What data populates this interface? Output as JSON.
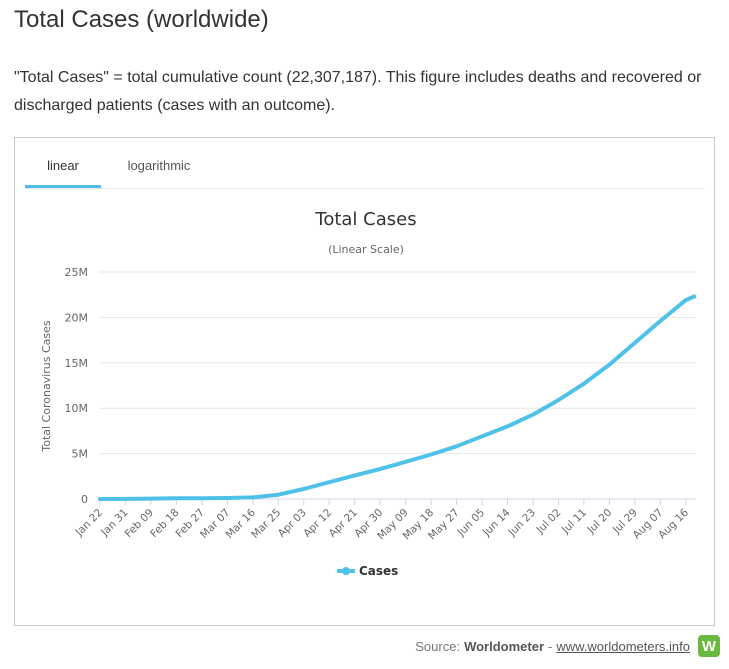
{
  "page": {
    "title": "Total Cases (worldwide)",
    "description": "\"Total Cases\" = total cumulative count (22,307,187). This figure includes deaths and recovered or discharged patients (cases with an outcome)."
  },
  "tabs": [
    {
      "label": "linear",
      "active": true
    },
    {
      "label": "logarithmic",
      "active": false
    }
  ],
  "colors": {
    "accent": "#4fc1e9",
    "series": "#4fc1e9"
  },
  "source": {
    "prefix": "Source: ",
    "name": "Worldometer",
    "separator": " - ",
    "link": "www.worldometers.info",
    "logo_letter": "W"
  },
  "chart_data": {
    "type": "line",
    "title": "Total Cases",
    "subtitle": "(Linear Scale)",
    "ylabel": "Total Coronavirus Cases",
    "xlabel": "",
    "ylim": [
      0,
      25000000
    ],
    "yticks": [
      0,
      5000000,
      10000000,
      15000000,
      20000000,
      25000000
    ],
    "ytick_labels": [
      "0",
      "5M",
      "10M",
      "15M",
      "20M",
      "25M"
    ],
    "xtick_labels": [
      "Jan 22",
      "Jan 31",
      "Feb 09",
      "Feb 18",
      "Feb 27",
      "Mar 07",
      "Mar 16",
      "Mar 25",
      "Apr 03",
      "Apr 12",
      "Apr 21",
      "Apr 30",
      "May 09",
      "May 18",
      "May 27",
      "Jun 05",
      "Jun 14",
      "Jun 23",
      "Jul 02",
      "Jul 11",
      "Jul 20",
      "Jul 29",
      "Aug 07",
      "Aug 16"
    ],
    "grid": true,
    "legend_position": "bottom-center",
    "series": [
      {
        "name": "Cases",
        "x": [
          "Jan 22",
          "Jan 31",
          "Feb 09",
          "Feb 18",
          "Feb 27",
          "Mar 07",
          "Mar 16",
          "Mar 25",
          "Apr 03",
          "Apr 12",
          "Apr 21",
          "Apr 30",
          "May 09",
          "May 18",
          "May 27",
          "Jun 05",
          "Jun 14",
          "Jun 23",
          "Jul 02",
          "Jul 11",
          "Jul 20",
          "Jul 29",
          "Aug 07",
          "Aug 16",
          "Aug 19"
        ],
        "values": [
          600,
          10000,
          40000,
          75000,
          85000,
          105000,
          180000,
          470000,
          1100000,
          1850000,
          2600000,
          3300000,
          4100000,
          4900000,
          5800000,
          6900000,
          8000000,
          9300000,
          10900000,
          12700000,
          14800000,
          17200000,
          19600000,
          21900000,
          22307187
        ]
      }
    ]
  }
}
